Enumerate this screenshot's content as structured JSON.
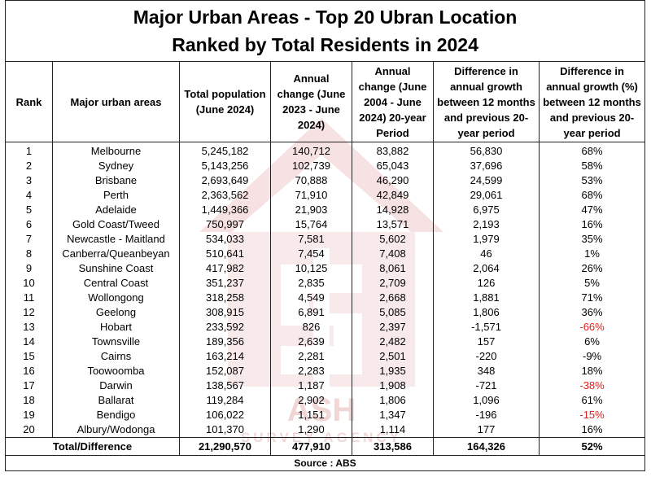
{
  "title": {
    "line1": "Major Urban Areas - Top 20 Ubran Location",
    "line2": "Ranked by Total Residents in 2024"
  },
  "headers": {
    "rank": "Rank",
    "area": "Major urban areas",
    "population": "Total population (June 2024)",
    "annual_change": "Annual change (June 2023 - June 2024)",
    "annual_change_20yr": "Annual change (June 2004 - June 2024) 20-year Period",
    "difference": "Difference in annual growth between 12 months and previous 20-year period",
    "difference_pct": "Difference in annual growth (%) between 12 months and previous 20-year period"
  },
  "rows": [
    {
      "rank": "1",
      "area": "Melbourne",
      "population": "5,245,182",
      "change": "140,712",
      "change20": "83,882",
      "diff": "56,830",
      "pct": "68%"
    },
    {
      "rank": "2",
      "area": "Sydney",
      "population": "5,143,256",
      "change": "102,739",
      "change20": "65,043",
      "diff": "37,696",
      "pct": "58%"
    },
    {
      "rank": "3",
      "area": "Brisbane",
      "population": "2,693,649",
      "change": "70,888",
      "change20": "46,290",
      "diff": "24,599",
      "pct": "53%"
    },
    {
      "rank": "4",
      "area": "Perth",
      "population": "2,363,562",
      "change": "71,910",
      "change20": "42,849",
      "diff": "29,061",
      "pct": "68%"
    },
    {
      "rank": "5",
      "area": "Adelaide",
      "population": "1,449,366",
      "change": "21,903",
      "change20": "14,928",
      "diff": "6,975",
      "pct": "47%"
    },
    {
      "rank": "6",
      "area": "Gold Coast/Tweed",
      "population": "750,997",
      "change": "15,764",
      "change20": "13,571",
      "diff": "2,193",
      "pct": "16%"
    },
    {
      "rank": "7",
      "area": "Newcastle - Maitland",
      "population": "534,033",
      "change": "7,581",
      "change20": "5,602",
      "diff": "1,979",
      "pct": "35%"
    },
    {
      "rank": "8",
      "area": "Canberra/Queanbeyan",
      "population": "510,641",
      "change": "7,454",
      "change20": "7,408",
      "diff": "46",
      "pct": "1%"
    },
    {
      "rank": "9",
      "area": "Sunshine Coast",
      "population": "417,982",
      "change": "10,125",
      "change20": "8,061",
      "diff": "2,064",
      "pct": "26%"
    },
    {
      "rank": "10",
      "area": "Central Coast",
      "population": "351,237",
      "change": "2,835",
      "change20": "2,709",
      "diff": "126",
      "pct": "5%"
    },
    {
      "rank": "11",
      "area": "Wollongong",
      "population": "318,258",
      "change": "4,549",
      "change20": "2,668",
      "diff": "1,881",
      "pct": "71%"
    },
    {
      "rank": "12",
      "area": "Geelong",
      "population": "308,915",
      "change": "6,891",
      "change20": "5,085",
      "diff": "1,806",
      "pct": "36%"
    },
    {
      "rank": "13",
      "area": "Hobart",
      "population": "233,592",
      "change": "826",
      "change20": "2,397",
      "diff": "-1,571",
      "pct": "-66%",
      "pct_negative": true
    },
    {
      "rank": "14",
      "area": "Townsville",
      "population": "189,356",
      "change": "2,639",
      "change20": "2,482",
      "diff": "157",
      "pct": "6%"
    },
    {
      "rank": "15",
      "area": "Cairns",
      "population": "163,214",
      "change": "2,281",
      "change20": "2,501",
      "diff": "-220",
      "pct": "-9%"
    },
    {
      "rank": "16",
      "area": "Toowoomba",
      "population": "152,087",
      "change": "2,283",
      "change20": "1,935",
      "diff": "348",
      "pct": "18%"
    },
    {
      "rank": "17",
      "area": "Darwin",
      "population": "138,567",
      "change": "1,187",
      "change20": "1,908",
      "diff": "-721",
      "pct": "-38%",
      "pct_negative": true
    },
    {
      "rank": "18",
      "area": "Ballarat",
      "population": "119,284",
      "change": "2,902",
      "change20": "1,806",
      "diff": "1,096",
      "pct": "61%"
    },
    {
      "rank": "19",
      "area": "Bendigo",
      "population": "106,022",
      "change": "1,151",
      "change20": "1,347",
      "diff": "-196",
      "pct": "-15%",
      "pct_negative": true
    },
    {
      "rank": "20",
      "area": "Albury/Wodonga",
      "population": "101,370",
      "change": "1,290",
      "change20": "1,114",
      "diff": "177",
      "pct": "16%"
    }
  ],
  "total": {
    "label": "Total/Difference",
    "population": "21,290,570",
    "change": "477,910",
    "change20": "313,586",
    "diff": "164,326",
    "pct": "52%"
  },
  "source": "Source : ABS",
  "watermark": {
    "text": "ASH",
    "subtext": "SURVEY AGENCY",
    "color": "#c44b4b"
  },
  "colors": {
    "negative": "#e02020",
    "border": "#222222"
  }
}
